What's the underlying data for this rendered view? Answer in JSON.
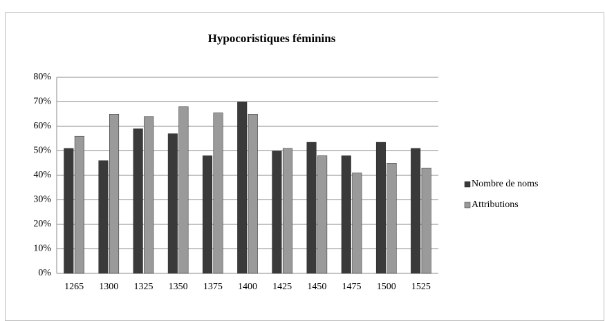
{
  "chart_data": {
    "type": "bar",
    "title": "Hypocoristiques  féminins",
    "categories": [
      "1265",
      "1300",
      "1325",
      "1350",
      "1375",
      "1400",
      "1425",
      "1450",
      "1475",
      "1500",
      "1525"
    ],
    "series": [
      {
        "name": "Nombre de noms",
        "color": "#3a3a3a",
        "values": [
          51,
          46,
          59,
          57,
          48,
          70,
          50,
          53.5,
          48,
          53.5,
          51
        ]
      },
      {
        "name": "Attributions",
        "color": "#9a9a9a",
        "values": [
          56,
          65,
          64,
          68,
          65.5,
          65,
          51,
          48,
          41,
          45,
          43
        ]
      }
    ],
    "ylim": [
      0,
      80
    ],
    "yticks": [
      {
        "value": 0,
        "label": "0%"
      },
      {
        "value": 10,
        "label": "10%"
      },
      {
        "value": 20,
        "label": "20%"
      },
      {
        "value": 30,
        "label": "30%"
      },
      {
        "value": 40,
        "label": "40%"
      },
      {
        "value": 50,
        "label": "50%"
      },
      {
        "value": 60,
        "label": "60%"
      },
      {
        "value": 70,
        "label": "70%"
      },
      {
        "value": 80,
        "label": "80%"
      }
    ],
    "grid": true,
    "legend": "right"
  }
}
